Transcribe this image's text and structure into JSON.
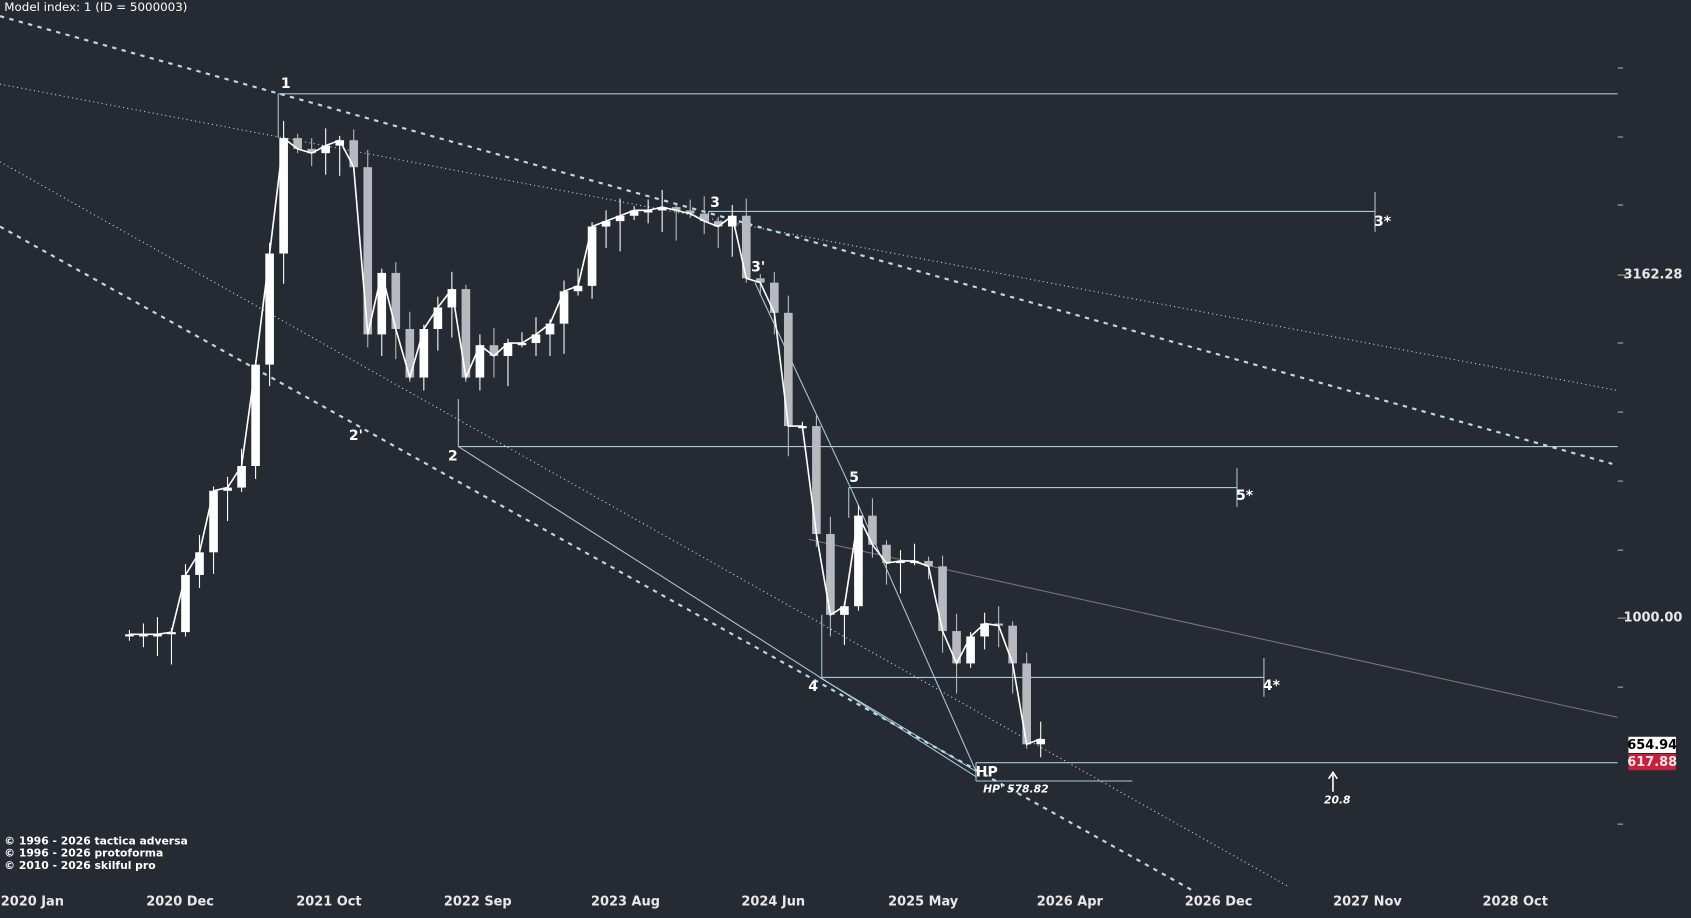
{
  "header": {
    "title": "Model index: 1  (ID = 5000003)"
  },
  "wave_labels": [
    "1",
    "2'",
    "2",
    "3",
    "3'",
    "3*",
    "5",
    "5*",
    "4",
    "4*",
    "HP",
    "HP' 578.82",
    "20.8"
  ],
  "price_axis": [
    "3162.28",
    "1000.00"
  ],
  "badges": [
    "654.94",
    "617.88"
  ],
  "time_axis": [
    "2020 Jan",
    "2020 Dec",
    "2021 Oct",
    "2022 Sep",
    "2023 Aug",
    "2024 Jun",
    "2025 May",
    "2026 Apr",
    "2026 Dec",
    "2027 Nov",
    "2028 Oct"
  ],
  "footer": [
    "© 1996 - 2026 tactica adversa",
    "© 1996 - 2026 protoforma",
    "© 2010 - 2026 skilful pro"
  ]
}
